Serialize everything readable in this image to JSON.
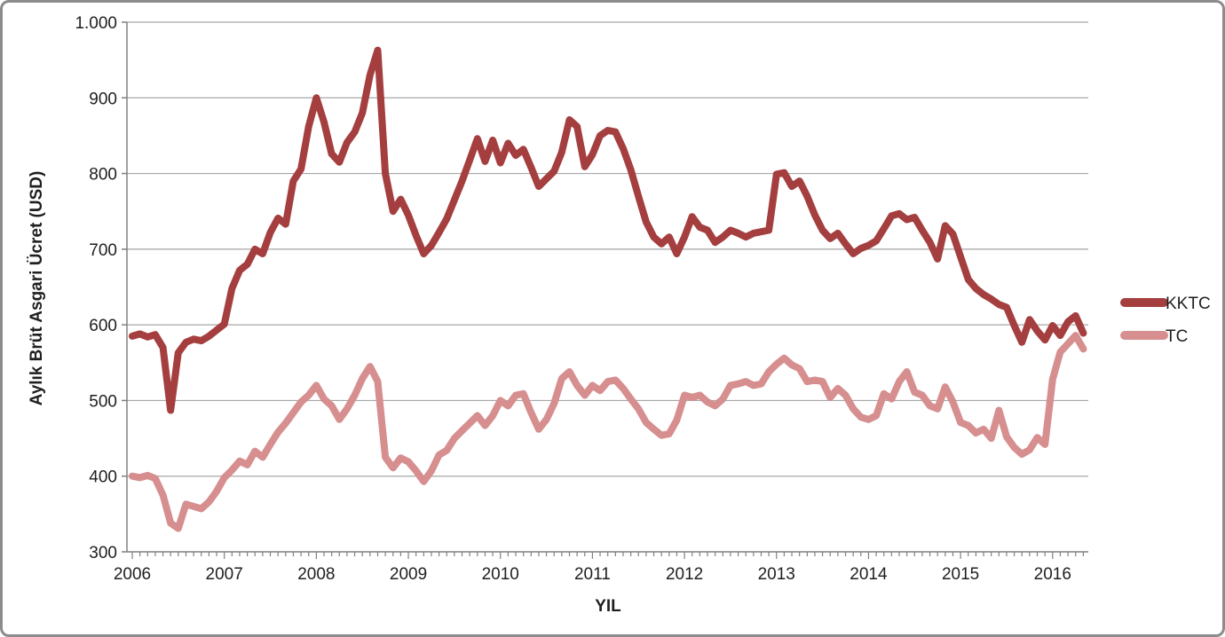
{
  "chart_data": {
    "type": "line",
    "title": "",
    "xlabel": "YIL",
    "ylabel": "Aylık Brüt Asgari Ücret (USD)",
    "ylim": [
      300,
      1000
    ],
    "y_step": 100,
    "y_tick_labels": [
      "300",
      "400",
      "500",
      "600",
      "700",
      "800",
      "900",
      "1.000"
    ],
    "x_tick_labels": [
      "2006",
      "2007",
      "2008",
      "2009",
      "2010",
      "2011",
      "2012",
      "2013",
      "2014",
      "2015",
      "2016"
    ],
    "x_start_month": "2006-01",
    "x_end_month": "2016-05",
    "months_per_label": 12,
    "grid": true,
    "legend_position": "right",
    "axis_color": "#808080",
    "grid_color": "#a6a6a6",
    "series": [
      {
        "name": "KKTC",
        "color": "#a43e3f",
        "values": [
          585,
          588,
          584,
          587,
          570,
          487,
          563,
          577,
          581,
          579,
          585,
          593,
          601,
          648,
          672,
          680,
          700,
          694,
          722,
          741,
          733,
          790,
          806,
          862,
          900,
          868,
          826,
          815,
          841,
          855,
          880,
          930,
          963,
          800,
          750,
          766,
          745,
          718,
          694,
          705,
          722,
          740,
          765,
          790,
          818,
          846,
          816,
          844,
          814,
          840,
          824,
          832,
          808,
          783,
          793,
          803,
          828,
          871,
          862,
          809,
          825,
          850,
          857,
          855,
          833,
          805,
          770,
          736,
          716,
          707,
          716,
          694,
          716,
          743,
          729,
          725,
          709,
          716,
          725,
          721,
          716,
          721,
          723,
          725,
          799,
          801,
          783,
          790,
          770,
          745,
          725,
          714,
          721,
          707,
          694,
          701,
          705,
          711,
          727,
          744,
          747,
          739,
          742,
          725,
          709,
          687,
          731,
          720,
          690,
          660,
          648,
          640,
          634,
          627,
          623,
          599,
          577,
          607,
          592,
          580,
          599,
          586,
          604,
          612,
          589
        ]
      },
      {
        "name": "TC",
        "color": "#d68e8f",
        "values": [
          400,
          398,
          401,
          397,
          375,
          338,
          331,
          363,
          360,
          357,
          366,
          380,
          398,
          408,
          420,
          415,
          433,
          425,
          442,
          458,
          470,
          484,
          498,
          507,
          520,
          502,
          493,
          475,
          489,
          507,
          529,
          545,
          525,
          425,
          411,
          424,
          419,
          407,
          393,
          407,
          428,
          434,
          450,
          460,
          470,
          480,
          467,
          480,
          500,
          493,
          507,
          509,
          484,
          462,
          475,
          496,
          529,
          538,
          520,
          507,
          520,
          513,
          525,
          527,
          516,
          502,
          489,
          471,
          462,
          454,
          456,
          474,
          507,
          504,
          507,
          498,
          493,
          502,
          520,
          522,
          525,
          520,
          522,
          538,
          548,
          556,
          547,
          542,
          525,
          527,
          525,
          504,
          516,
          507,
          489,
          478,
          475,
          480,
          509,
          502,
          525,
          538,
          511,
          507,
          493,
          489,
          518,
          498,
          471,
          467,
          457,
          462,
          450,
          487,
          452,
          438,
          429,
          435,
          451,
          442,
          528,
          564,
          575,
          586,
          568
        ]
      }
    ]
  }
}
